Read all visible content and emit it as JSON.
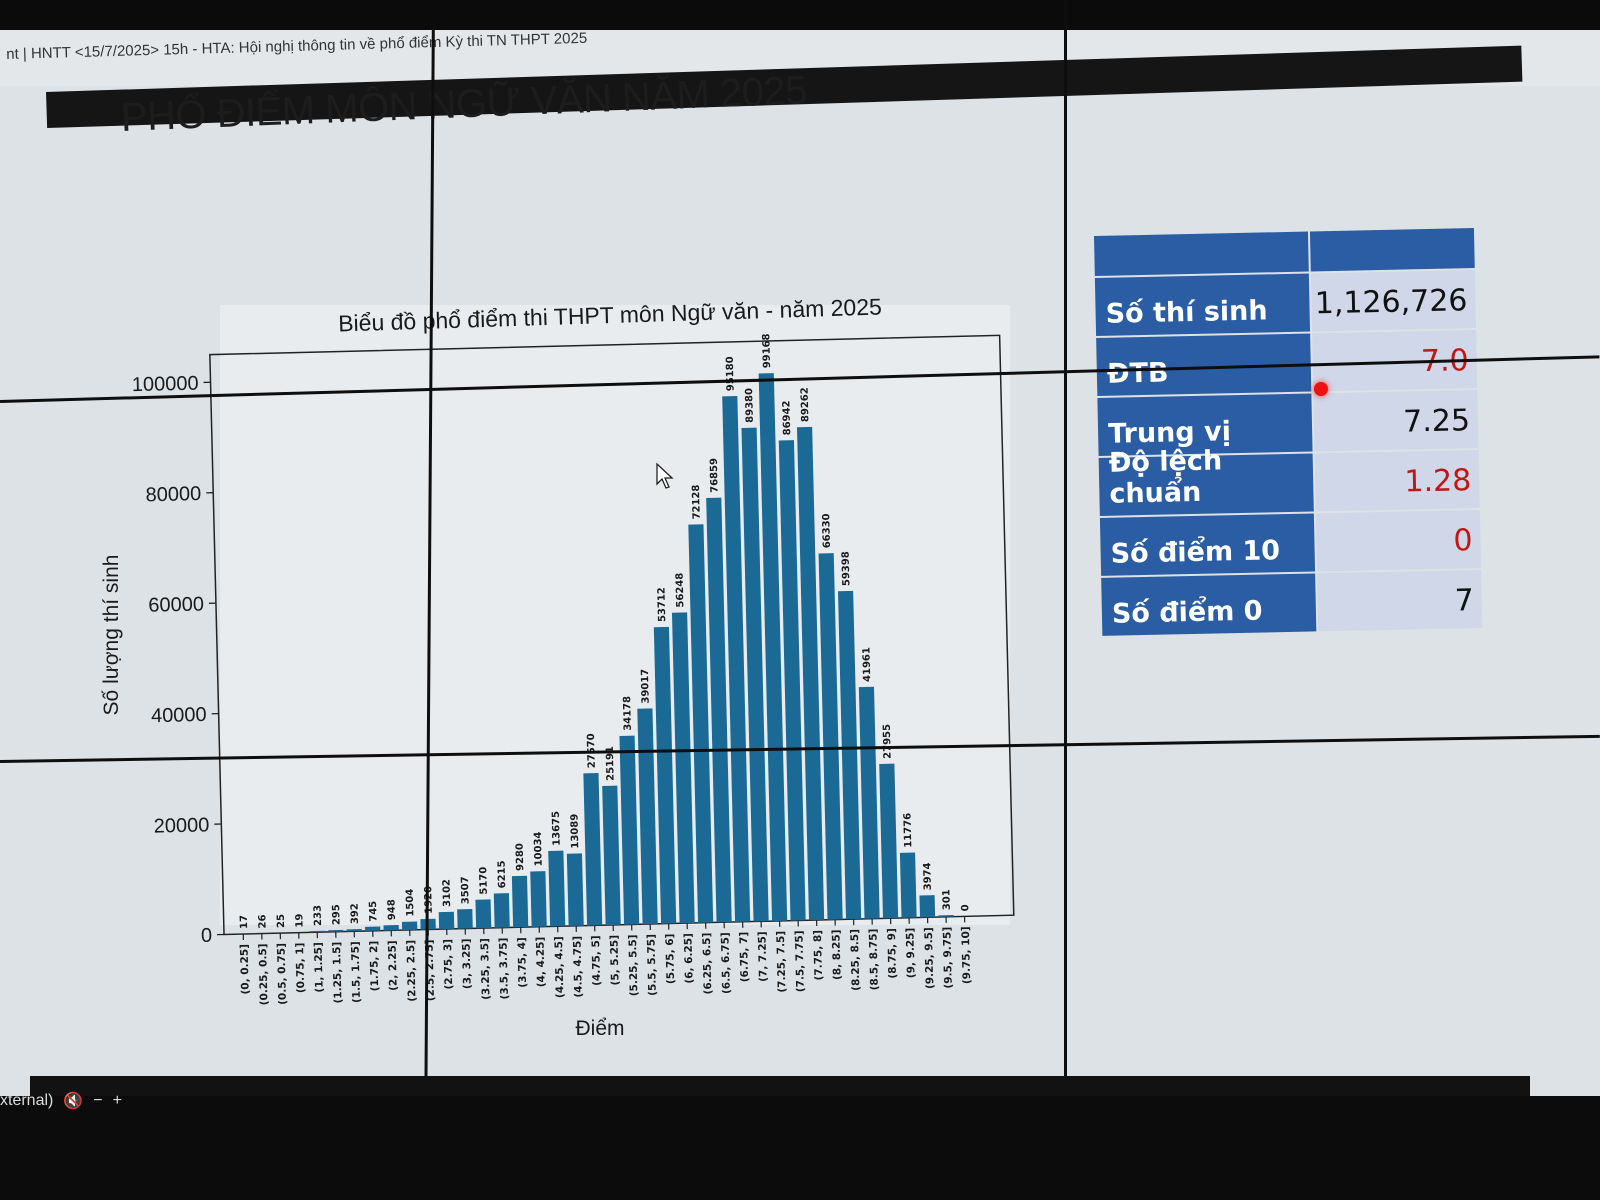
{
  "meeting_title": "nt | HNTT <15/7/2025> 15h - HTA: Hội nghị thông tin về phổ điểm Kỳ thi TN THPT 2025",
  "slide_heading": "PHỔ ĐIỂM MÔN NGỮ VĂN NĂM 2025",
  "meeting_controls": {
    "label": "xternal)"
  },
  "colors": {
    "bar": "#1b6a96",
    "table_header": "#2a5da3",
    "table_value_bg": "#cfd7e8",
    "highlight": "#c41515"
  },
  "stats_table": {
    "rows": [
      {
        "label": "Số thí sinh",
        "value": "1,126,726",
        "highlight": false
      },
      {
        "label": "ĐTB",
        "value": "7.0",
        "highlight": true
      },
      {
        "label": "Trung vị",
        "value": "7.25",
        "highlight": false
      },
      {
        "label": "Độ lệch chuẩn",
        "value": "1.28",
        "highlight": true
      },
      {
        "label": "Số điểm 10",
        "value": "0",
        "highlight": true
      },
      {
        "label": "Số điểm 0",
        "value": "7",
        "highlight": false
      }
    ]
  },
  "chart_data": {
    "type": "bar",
    "title": "Biểu đồ phổ điểm thi THPT môn Ngữ văn - năm 2025",
    "xlabel": "Điểm",
    "ylabel": "Số lượng thí sinh",
    "ylim": [
      0,
      105000
    ],
    "yticks": [
      0,
      20000,
      40000,
      60000,
      80000,
      100000
    ],
    "grid": false,
    "categories": [
      "(0, 0.25]",
      "(0.25, 0.5]",
      "(0.5, 0.75]",
      "(0.75, 1]",
      "(1, 1.25]",
      "(1.25, 1.5]",
      "(1.5, 1.75]",
      "(1.75, 2]",
      "(2, 2.25]",
      "(2.25, 2.5]",
      "(2.5, 2.75]",
      "(2.75, 3]",
      "(3, 3.25]",
      "(3.25, 3.5]",
      "(3.5, 3.75]",
      "(3.75, 4]",
      "(4, 4.25]",
      "(4.25, 4.5]",
      "(4.5, 4.75]",
      "(4.75, 5]",
      "(5, 5.25]",
      "(5.25, 5.5]",
      "(5.5, 5.75]",
      "(5.75, 6]",
      "(6, 6.25]",
      "(6.25, 6.5]",
      "(6.5, 6.75]",
      "(6.75, 7]",
      "(7, 7.25]",
      "(7.25, 7.5]",
      "(7.5, 7.75]",
      "(7.75, 8]",
      "(8, 8.25]",
      "(8.25, 8.5]",
      "(8.5, 8.75]",
      "(8.75, 9]",
      "(9, 9.25]",
      "(9.25, 9.5]",
      "(9.5, 9.75]",
      "(9.75, 10]"
    ],
    "values": [
      17,
      26,
      25,
      19,
      233,
      295,
      392,
      745,
      948,
      1504,
      1920,
      3102,
      3507,
      5170,
      6215,
      9280,
      10034,
      13675,
      13089,
      27570,
      25191,
      34178,
      39017,
      53712,
      56248,
      72128,
      76859,
      95180,
      89380,
      99168,
      86942,
      89262,
      66330,
      59398,
      41961,
      27955,
      11776,
      3974,
      301,
      0
    ]
  }
}
